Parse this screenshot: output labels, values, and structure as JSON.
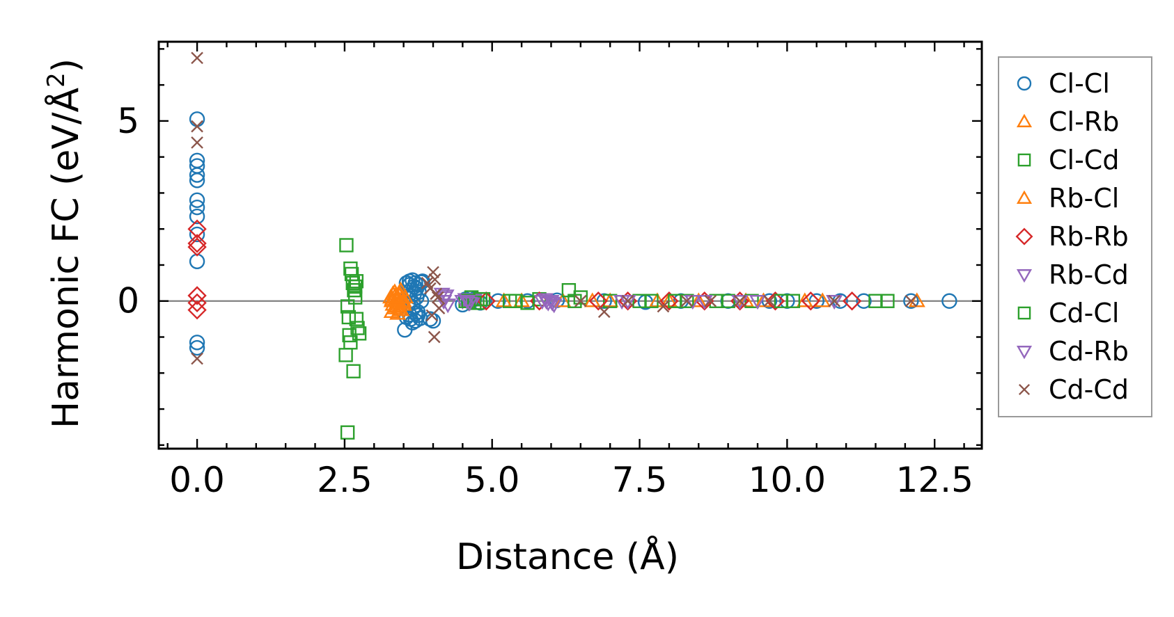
{
  "chart_data": {
    "type": "scatter",
    "title": "",
    "xlabel": "Distance (Å)",
    "ylabel": {
      "main": "Harmonic FC (eV/Å",
      "superscript": "2",
      "tail": ")"
    },
    "xlim": [
      -0.65,
      13.3
    ],
    "ylim": [
      -4.1,
      7.2
    ],
    "xticks": [
      0.0,
      2.5,
      5.0,
      7.5,
      10.0,
      12.5
    ],
    "xtick_labels": [
      "0.0",
      "2.5",
      "5.0",
      "7.5",
      "10.0",
      "12.5"
    ],
    "yticks": [
      0,
      5
    ],
    "ytick_labels": [
      "0",
      "5"
    ],
    "zero_line": true,
    "legend_position": "right-outside",
    "series": [
      {
        "name": "Cl-Cl",
        "marker": "circle",
        "color": "#1f77b4",
        "x": [
          0,
          0,
          0,
          0,
          0,
          0,
          0,
          0,
          0,
          0,
          0,
          0,
          3.55,
          3.6,
          3.65,
          3.7,
          3.75,
          3.8,
          3.62,
          3.68,
          3.72,
          3.58,
          3.66,
          3.74,
          3.55,
          3.62,
          3.7,
          3.78,
          3.6,
          3.68,
          3.76,
          3.65,
          3.72,
          3.58,
          3.66,
          3.74,
          3.52,
          3.82,
          3.95,
          4.0,
          3.6,
          3.7,
          3.8,
          4.5,
          4.55,
          4.6,
          4.7,
          4.8,
          5.1,
          5.6,
          6.1,
          6.9,
          7.6,
          8.2,
          9.0,
          9.7,
          10.0,
          10.5,
          10.9,
          11.3,
          12.1,
          12.75
        ],
        "y": [
          5.05,
          3.9,
          3.75,
          3.5,
          3.35,
          2.8,
          2.6,
          2.35,
          1.85,
          1.1,
          -1.15,
          -1.3,
          0.5,
          0.55,
          0.58,
          0.5,
          0.45,
          0.52,
          0.3,
          0.2,
          0.1,
          -0.1,
          -0.2,
          -0.3,
          -0.45,
          -0.5,
          -0.55,
          -0.48,
          -0.38,
          0.4,
          0.25,
          -0.6,
          0.35,
          0.15,
          -0.05,
          -0.4,
          -0.8,
          0.55,
          -0.5,
          -0.55,
          0.45,
          -0.35,
          0.0,
          -0.1,
          0.05,
          0.0,
          0.05,
          -0.05,
          0.0,
          0.0,
          0.02,
          0.0,
          -0.03,
          0.0,
          0.0,
          0.0,
          0.0,
          0.0,
          0.0,
          0.0,
          0.0,
          0.0
        ]
      },
      {
        "name": "Cl-Rb",
        "marker": "triangle-up",
        "color": "#ff7f0e",
        "x": [
          3.28,
          3.3,
          3.32,
          3.34,
          3.36,
          3.38,
          3.4,
          3.42,
          3.44,
          3.46,
          3.48,
          3.5,
          3.3,
          3.35,
          3.4,
          3.45,
          3.5,
          3.32,
          3.42,
          5.5,
          6.2,
          7.0,
          7.8,
          8.5,
          9.3,
          10.3,
          12.2
        ],
        "y": [
          0.1,
          0.0,
          -0.1,
          -0.2,
          0.15,
          -0.15,
          0.05,
          -0.05,
          0.2,
          -0.25,
          0.1,
          -0.1,
          -0.3,
          0.25,
          -0.35,
          0.3,
          0.0,
          0.2,
          -0.2,
          0.0,
          0.0,
          0.0,
          0.0,
          0.0,
          0.0,
          0.0,
          0.0
        ]
      },
      {
        "name": "Cl-Cd",
        "marker": "square",
        "color": "#2ca02c",
        "x": [
          2.53,
          2.55,
          2.57,
          2.6,
          2.62,
          2.64,
          2.66,
          2.68,
          2.7,
          2.72,
          2.58,
          2.52,
          2.6,
          2.7,
          2.55,
          2.65,
          2.75,
          2.68,
          4.55,
          4.65,
          4.75,
          4.85,
          5.4,
          5.8,
          6.3,
          6.5,
          7.0,
          7.7,
          8.3,
          8.8,
          9.4,
          10.1,
          11.5,
          11.7
        ],
        "y": [
          1.55,
          -0.15,
          -0.45,
          0.9,
          0.75,
          0.5,
          0.3,
          0.1,
          -0.5,
          -0.75,
          -0.95,
          -1.5,
          -1.15,
          0.55,
          -3.65,
          -1.95,
          -0.9,
          0.4,
          0.0,
          0.1,
          -0.05,
          0.05,
          0.0,
          0.05,
          0.3,
          0.1,
          0.0,
          0.0,
          0.0,
          0.0,
          0.0,
          0.0,
          0.0,
          0.0
        ]
      },
      {
        "name": "Rb-Cl",
        "marker": "triangle-up",
        "color": "#ff7f0e",
        "x": [
          3.31,
          3.37,
          3.43,
          3.49,
          3.53,
          5.2,
          6.7,
          8.0,
          9.6,
          10.6
        ],
        "y": [
          0.05,
          -0.1,
          0.15,
          -0.05,
          0.1,
          0.0,
          0.0,
          0.0,
          0.0,
          0.0
        ]
      },
      {
        "name": "Rb-Rb",
        "marker": "diamond",
        "color": "#d62728",
        "x": [
          0,
          0,
          0,
          0,
          0,
          0,
          4.9,
          5.8,
          6.8,
          7.3,
          8.0,
          8.6,
          9.2,
          9.8,
          10.4,
          11.1
        ],
        "y": [
          2.0,
          1.6,
          1.5,
          0.15,
          -0.05,
          -0.25,
          0.0,
          0.0,
          0.0,
          0.0,
          0.0,
          0.0,
          0.0,
          0.0,
          0.0,
          0.0
        ]
      },
      {
        "name": "Rb-Cd",
        "marker": "triangle-down",
        "color": "#9467bd",
        "x": [
          4.15,
          4.2,
          4.25,
          4.5,
          4.55,
          4.6,
          4.65,
          4.7,
          5.85,
          5.9,
          5.95,
          6.0,
          6.05,
          7.2,
          8.4,
          9.5,
          10.8
        ],
        "y": [
          0.2,
          0.1,
          -0.1,
          0.0,
          0.05,
          -0.05,
          0.0,
          0.05,
          0.0,
          0.05,
          -0.05,
          0.0,
          -0.1,
          0.0,
          0.0,
          0.0,
          0.0
        ]
      },
      {
        "name": "Cd-Cl",
        "marker": "square",
        "color": "#2ca02c",
        "x": [
          4.6,
          4.7,
          4.8,
          5.3,
          5.6,
          6.4,
          7.5,
          8.1,
          9.0,
          9.9
        ],
        "y": [
          0.0,
          -0.05,
          0.05,
          0.0,
          -0.05,
          0.0,
          0.0,
          0.0,
          0.0,
          0.0
        ]
      },
      {
        "name": "Cd-Rb",
        "marker": "triangle-down",
        "color": "#9467bd",
        "x": [
          4.18,
          4.22,
          4.58,
          4.62,
          5.92,
          6.02,
          7.3,
          8.6,
          9.2
        ],
        "y": [
          0.0,
          0.15,
          0.0,
          -0.05,
          0.0,
          -0.05,
          0.0,
          0.0,
          0.0
        ]
      },
      {
        "name": "Cd-Cd",
        "marker": "x",
        "color": "#8c564b",
        "x": [
          0,
          0,
          0,
          0,
          3.9,
          3.95,
          4.0,
          4.02,
          4.05,
          4.08,
          4.1,
          3.98,
          4.03,
          6.5,
          6.9,
          7.3,
          7.9,
          8.3,
          8.7,
          9.2,
          9.7,
          10.8,
          12.1
        ],
        "y": [
          6.75,
          4.85,
          4.4,
          -1.6,
          0.5,
          0.35,
          0.8,
          -1.0,
          0.2,
          0.1,
          -0.2,
          -0.4,
          0.6,
          0.0,
          -0.3,
          0.0,
          -0.15,
          0.0,
          0.0,
          0.0,
          0.0,
          0.0,
          0.0
        ]
      }
    ]
  }
}
